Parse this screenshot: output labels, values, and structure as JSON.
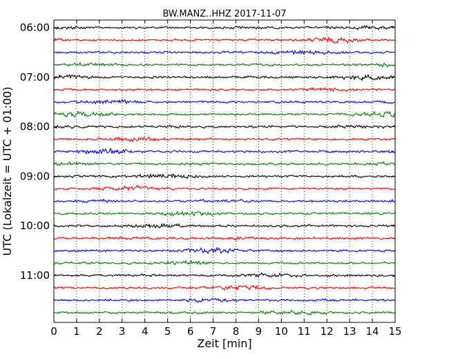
{
  "chart_data": {
    "type": "line",
    "title": "BW.MANZ..HHZ 2017-11-07",
    "xlabel": "Zeit  [min]",
    "ylabel": "UTC (Lokalzeit = UTC + 01:00)",
    "xlim": [
      0,
      15
    ],
    "x_ticks": [
      "0",
      "1",
      "2",
      "3",
      "4",
      "5",
      "6",
      "7",
      "8",
      "9",
      "10",
      "11",
      "12",
      "13",
      "14",
      "15"
    ],
    "y_ticks": [
      "06:00",
      "07:00",
      "08:00",
      "09:00",
      "10:00",
      "11:00"
    ],
    "grid": "vertical dotted",
    "trace_colors": [
      "#000000",
      "#ff0000",
      "#0000ff",
      "#007f00"
    ],
    "trace_start_times": [
      "06:00",
      "06:15",
      "06:30",
      "06:45",
      "07:00",
      "07:15",
      "07:30",
      "07:45",
      "08:00",
      "08:15",
      "08:30",
      "08:45",
      "09:00",
      "09:15",
      "09:30",
      "09:45",
      "10:00",
      "10:15",
      "10:30",
      "10:45",
      "11:00",
      "11:15",
      "11:30",
      "11:45"
    ],
    "amplitude_note": "continuous low-amplitude seismic noise on all traces"
  }
}
